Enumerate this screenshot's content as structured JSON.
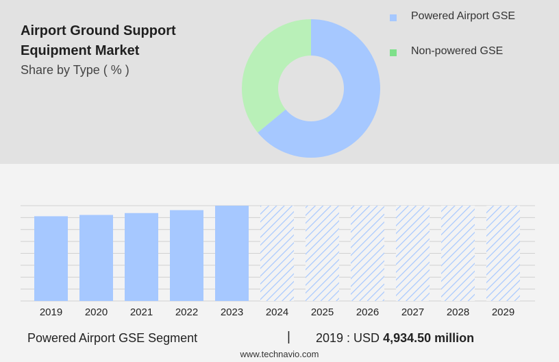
{
  "header": {
    "title_line1": "Airport Ground Support",
    "title_line2": "Equipment Market",
    "subtitle": "Share by Type ( % )"
  },
  "colors": {
    "powered": "#a6c8ff",
    "non_powered": "#b9f0b8",
    "non_powered_legend": "#7ee08a",
    "forecast_hatch": "#a6c8ff",
    "grid": "#d0d0d0"
  },
  "chart_data": [
    {
      "type": "pie",
      "donut": true,
      "title": "Share by Type ( % )",
      "legend_position": "top-right",
      "categories": [
        "Powered Airport GSE",
        "Non-powered GSE"
      ],
      "values": [
        64,
        36
      ]
    },
    {
      "type": "bar",
      "title": "",
      "xlabel": "",
      "ylabel": "",
      "grid": true,
      "categories": [
        "2019",
        "2020",
        "2021",
        "2022",
        "2023",
        "2024",
        "2025",
        "2026",
        "2027",
        "2028",
        "2029"
      ],
      "values": [
        4934.5,
        5010,
        5120,
        5290,
        5550,
        null,
        null,
        null,
        null,
        null,
        null
      ],
      "forecast_start_index": 5,
      "ylim": [
        0,
        5550
      ]
    }
  ],
  "footer": {
    "segment_label": "Powered Airport GSE Segment",
    "separator": "|",
    "year_prefix": "2019 : USD ",
    "value_text": "4,934.50 million",
    "source": "www.technavio.com"
  }
}
